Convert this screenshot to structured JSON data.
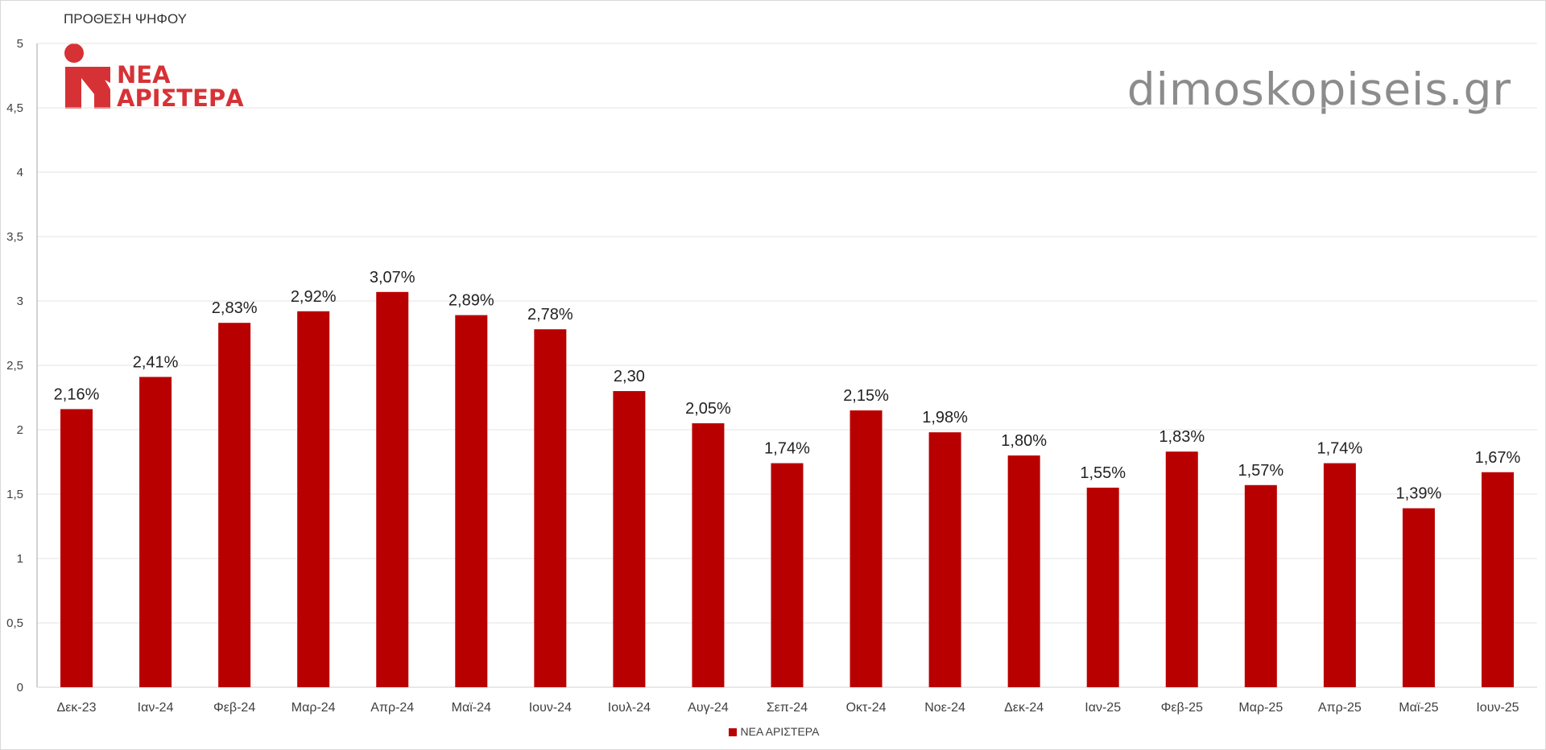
{
  "chart_data": {
    "type": "bar",
    "ylabel": "ΠΡΟΘΕΣΗ ΨΗΦΟΥ",
    "ylim": [
      0,
      5
    ],
    "yticks": [
      "0",
      "0,5",
      "1",
      "1,5",
      "2",
      "2,5",
      "3",
      "3,5",
      "4",
      "4,5",
      "5"
    ],
    "categories": [
      "Δεκ-23",
      "Ιαν-24",
      "Φεβ-24",
      "Μαρ-24",
      "Απρ-24",
      "Μαϊ-24",
      "Ιουν-24",
      "Ιουλ-24",
      "Αυγ-24",
      "Σεπ-24",
      "Οκτ-24",
      "Νοε-24",
      "Δεκ-24",
      "Ιαν-25",
      "Φεβ-25",
      "Μαρ-25",
      "Απρ-25",
      "Μαϊ-25",
      "Ιουν-25"
    ],
    "series": [
      {
        "name": "ΝΕΑ ΑΡΙΣΤΕΡΑ",
        "color": "#b90000",
        "values": [
          2.16,
          2.41,
          2.83,
          2.92,
          3.07,
          2.89,
          2.78,
          2.3,
          2.05,
          1.74,
          2.15,
          1.98,
          1.8,
          1.55,
          1.83,
          1.57,
          1.74,
          1.39,
          1.67
        ],
        "labels": [
          "2,16%",
          "2,41%",
          "2,83%",
          "2,92%",
          "3,07%",
          "2,89%",
          "2,78%",
          "2,30",
          "2,05%",
          "1,74%",
          "2,15%",
          "1,98%",
          "1,80%",
          "1,55%",
          "1,83%",
          "1,57%",
          "1,74%",
          "1,39%",
          "1,67%"
        ]
      }
    ],
    "grid": true,
    "legend_position": "bottom"
  },
  "logo": {
    "line1": "ΝΕΑ",
    "line2": "ΑΡΙΣΤΕΡΑ",
    "color": "#d63236"
  },
  "watermark": "dimoskopiseis.gr"
}
